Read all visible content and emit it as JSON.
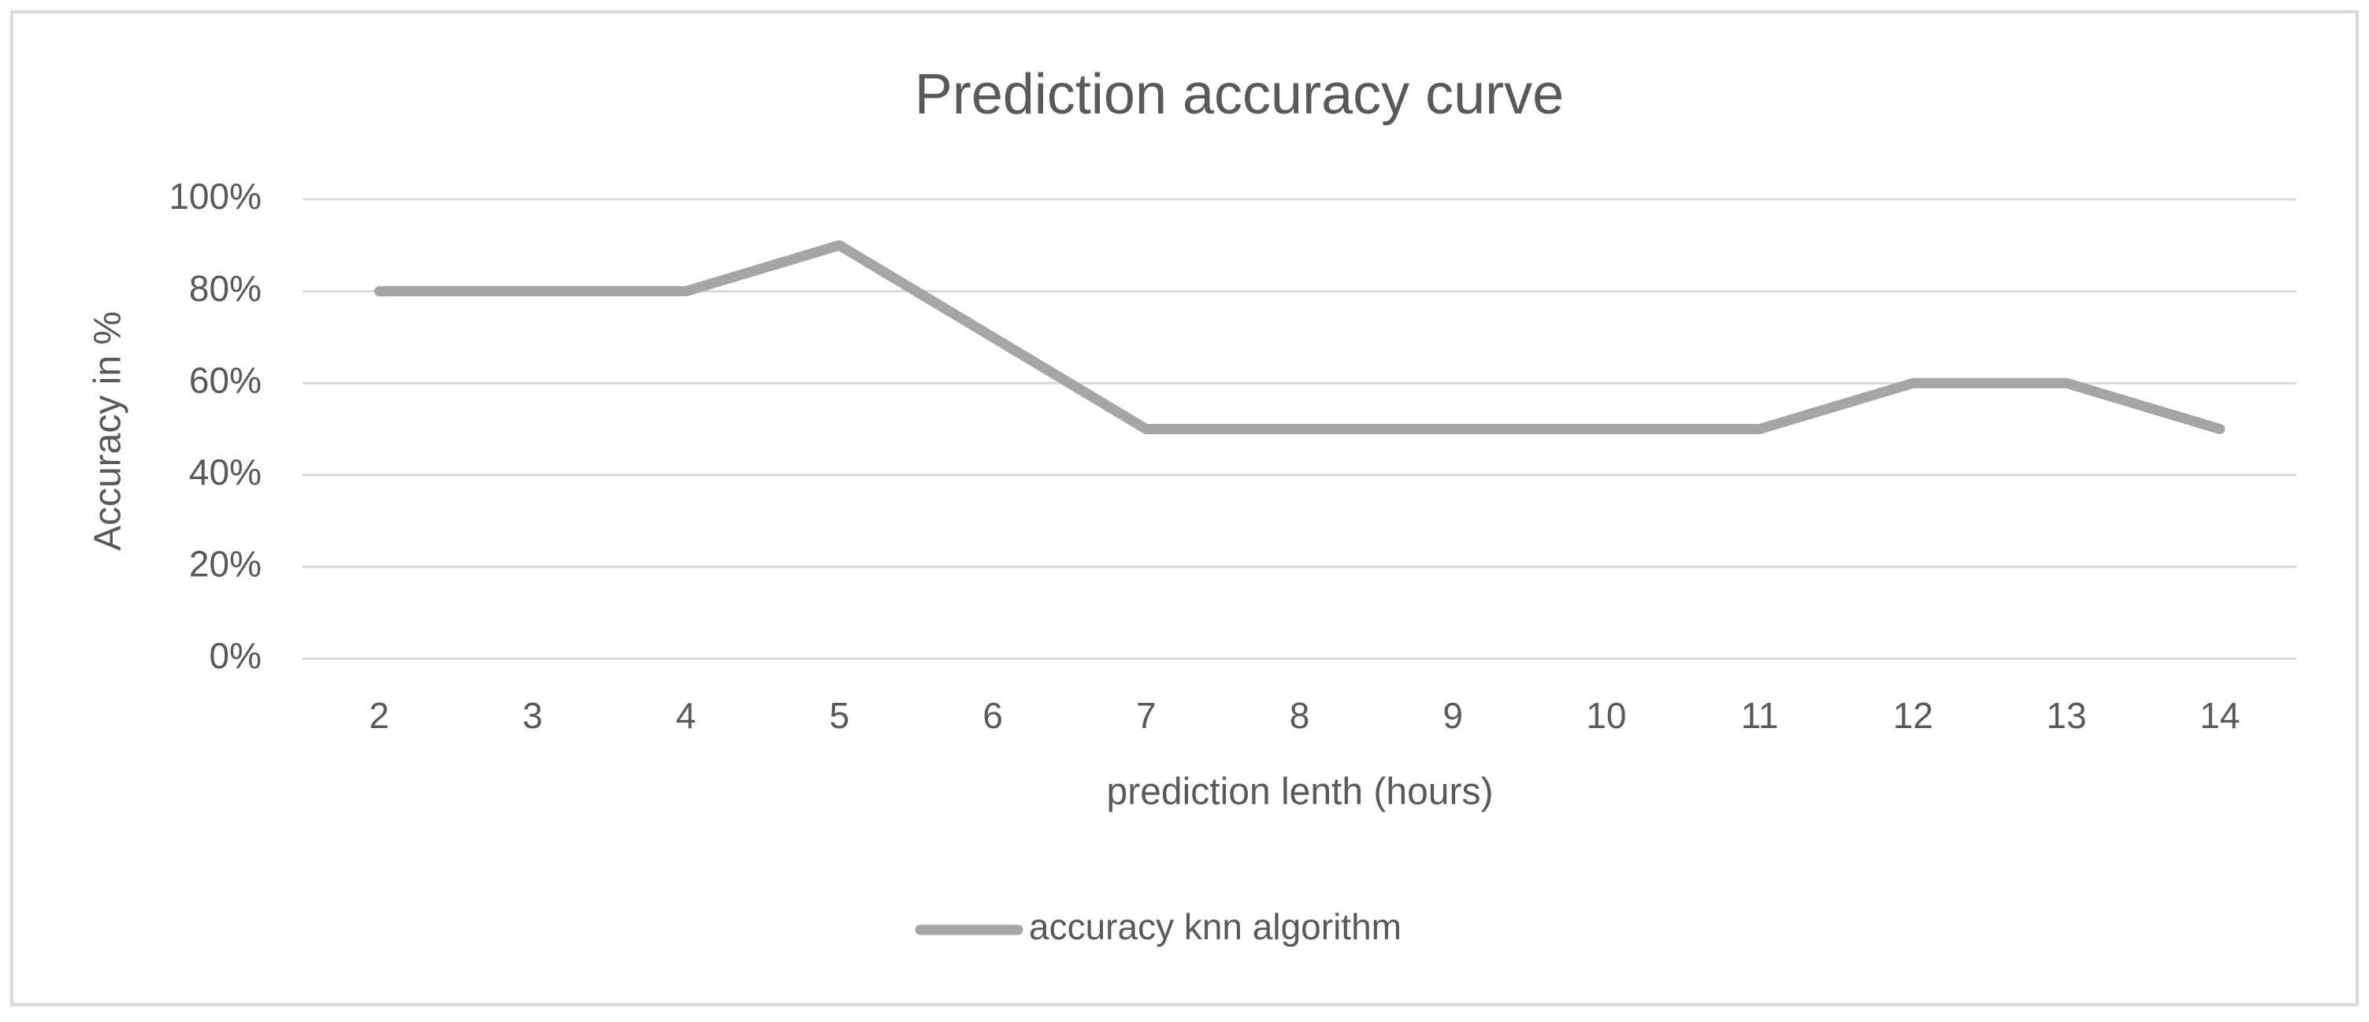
{
  "chart_data": {
    "type": "line",
    "title": "Prediction accuracy curve",
    "x_label": "prediction lenth (hours)",
    "y_label": "Accuracy in %",
    "categories": [
      "2",
      "3",
      "4",
      "5",
      "6",
      "7",
      "8",
      "9",
      "10",
      "11",
      "12",
      "13",
      "14"
    ],
    "series": [
      {
        "name": "accuracy knn algorithm",
        "color": "#a5a5a5",
        "values": [
          80,
          80,
          80,
          90,
          70,
          50,
          50,
          50,
          50,
          50,
          60,
          60,
          50
        ]
      }
    ],
    "ylim": [
      0,
      100
    ],
    "yticks": [
      {
        "value": 0,
        "label": "0%"
      },
      {
        "value": 20,
        "label": "20%"
      },
      {
        "value": 40,
        "label": "40%"
      },
      {
        "value": 60,
        "label": "60%"
      },
      {
        "value": 80,
        "label": "80%"
      },
      {
        "value": 100,
        "label": "100%"
      }
    ],
    "grid": true,
    "legend": "bottom"
  }
}
